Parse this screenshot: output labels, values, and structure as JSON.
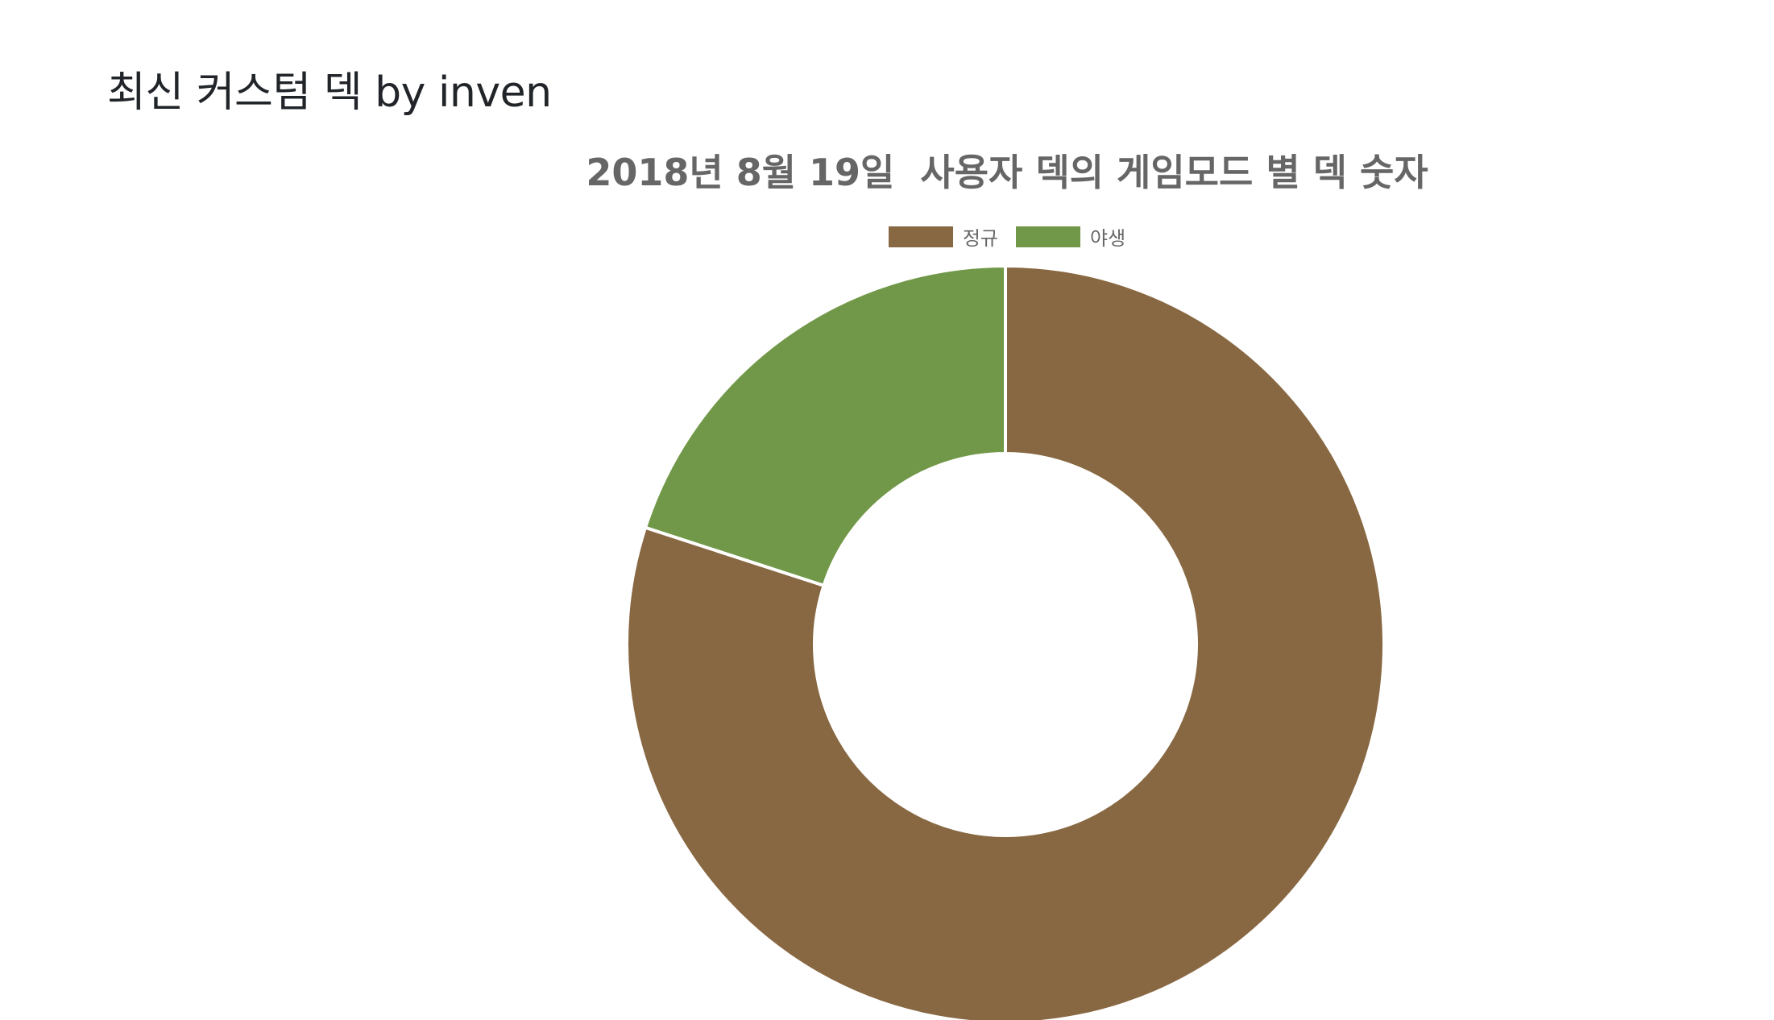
{
  "page": {
    "heading": "최신 커스텀 덱 by inven"
  },
  "colors": {
    "regular": "#886842",
    "wild": "#719848",
    "slice_border": "#ffffff",
    "text_gray": "#666666"
  },
  "chart_data": {
    "type": "pie",
    "style": "doughnut",
    "title": "2018년 8월 19일  사용자 덱의 게임모드 별 덱 숫자",
    "legend_position": "top",
    "categories": [
      "정규",
      "야생"
    ],
    "values": [
      80,
      20
    ],
    "colors": [
      "#886842",
      "#719848"
    ]
  }
}
